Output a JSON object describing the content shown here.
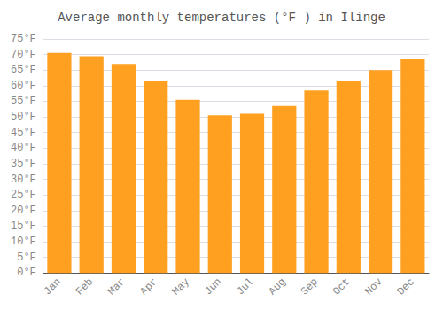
{
  "chart_data": {
    "type": "bar",
    "title": "Average monthly temperatures (°F ) in Ilinge",
    "categories": [
      "Jan",
      "Feb",
      "Mar",
      "Apr",
      "May",
      "Jun",
      "Jul",
      "Aug",
      "Sep",
      "Oct",
      "Nov",
      "Dec"
    ],
    "values": [
      70.5,
      69.5,
      67.0,
      61.5,
      55.5,
      50.5,
      51.0,
      53.5,
      58.5,
      61.5,
      65.0,
      68.5
    ],
    "color": "#FFA020",
    "ylim": [
      0,
      75
    ],
    "yticks": [
      {
        "value": 0,
        "label": "0°F"
      },
      {
        "value": 5,
        "label": "5°F"
      },
      {
        "value": 10,
        "label": "10°F"
      },
      {
        "value": 15,
        "label": "15°F"
      },
      {
        "value": 20,
        "label": "20°F"
      },
      {
        "value": 25,
        "label": "25°F"
      },
      {
        "value": 30,
        "label": "30°F"
      },
      {
        "value": 35,
        "label": "35°F"
      },
      {
        "value": 40,
        "label": "40°F"
      },
      {
        "value": 45,
        "label": "45°F"
      },
      {
        "value": 50,
        "label": "50°F"
      },
      {
        "value": 55,
        "label": "55°F"
      },
      {
        "value": 60,
        "label": "60°F"
      },
      {
        "value": 65,
        "label": "65°F"
      },
      {
        "value": 70,
        "label": "70°F"
      },
      {
        "value": 75,
        "label": "75°F"
      }
    ],
    "grid": true
  }
}
